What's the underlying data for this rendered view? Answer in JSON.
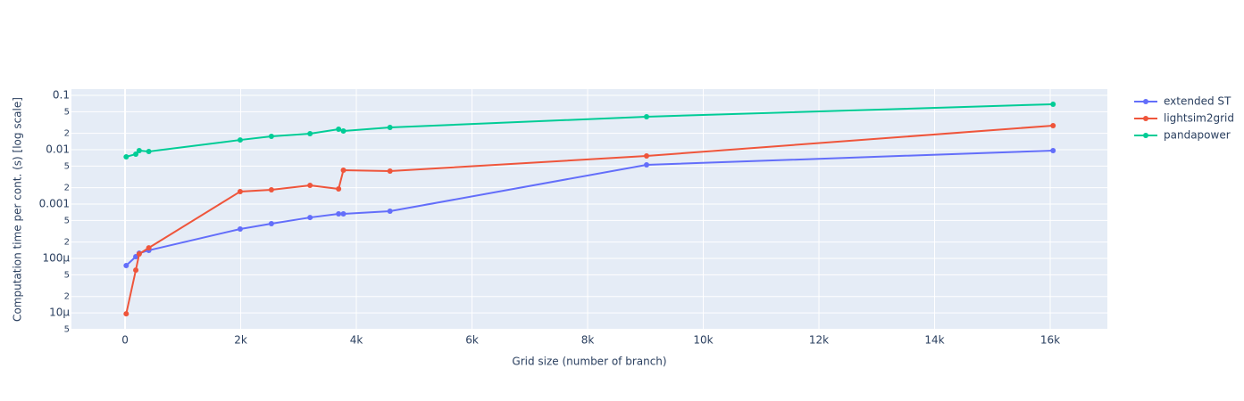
{
  "chart_data": {
    "type": "line",
    "x_label": "Grid size (number of branch)",
    "y_label": "Computation time per cont. (s) [log scale]",
    "log_y": true,
    "grid": true,
    "legend": "right",
    "x": [
      20,
      186,
      245,
      411,
      1991,
      2531,
      3199,
      3693,
      3776,
      4582,
      9019,
      16049
    ],
    "series": [
      {
        "name": "extended ST",
        "color": "#636efa",
        "values": [
          7.4e-05,
          0.000108,
          0.000125,
          0.000141,
          0.000348,
          0.000436,
          0.000567,
          0.00066,
          0.00066,
          0.00074,
          0.00526,
          0.00964
        ]
      },
      {
        "name": "lightsim2grid",
        "color": "#ef553b",
        "values": [
          9.6e-06,
          6.1e-05,
          0.000121,
          0.000157,
          0.0017,
          0.00183,
          0.00221,
          0.0019,
          0.0042,
          0.00404,
          0.00767,
          0.0277
        ]
      },
      {
        "name": "pandapower",
        "color": "#00cc96",
        "values": [
          0.0074,
          0.00828,
          0.00964,
          0.00927,
          0.0151,
          0.0176,
          0.0197,
          0.0238,
          0.0221,
          0.0257,
          0.0404,
          0.0686
        ]
      }
    ],
    "xlim": [
      -927,
      16988
    ],
    "xticks": [
      0,
      {
        "value": 2000,
        "label": "2k"
      },
      {
        "value": 4000,
        "label": "4k"
      },
      {
        "value": 6000,
        "label": "6k"
      },
      {
        "value": 8000,
        "label": "8k"
      },
      {
        "value": 10000,
        "label": "10k"
      },
      {
        "value": 12000,
        "label": "12k"
      },
      {
        "value": 14000,
        "label": "14k"
      },
      {
        "value": 16000,
        "label": "16k"
      }
    ],
    "ylim": [
      4.9e-06,
      0.13
    ],
    "yticks": [
      0.1,
      {
        "value": 0.05,
        "label": "5"
      },
      {
        "value": 0.02,
        "label": "2"
      },
      0.01,
      {
        "value": 0.005,
        "label": "5"
      },
      {
        "value": 0.002,
        "label": "2"
      },
      0.001,
      {
        "value": 0.0005,
        "label": "5"
      },
      {
        "value": 0.0002,
        "label": "2"
      },
      {
        "value": 0.0001,
        "label": "100µ"
      },
      {
        "value": 5e-05,
        "label": "5"
      },
      {
        "value": 2e-05,
        "label": "2"
      },
      {
        "value": 1e-05,
        "label": "10µ"
      },
      {
        "value": 5e-06,
        "label": "5"
      }
    ]
  }
}
